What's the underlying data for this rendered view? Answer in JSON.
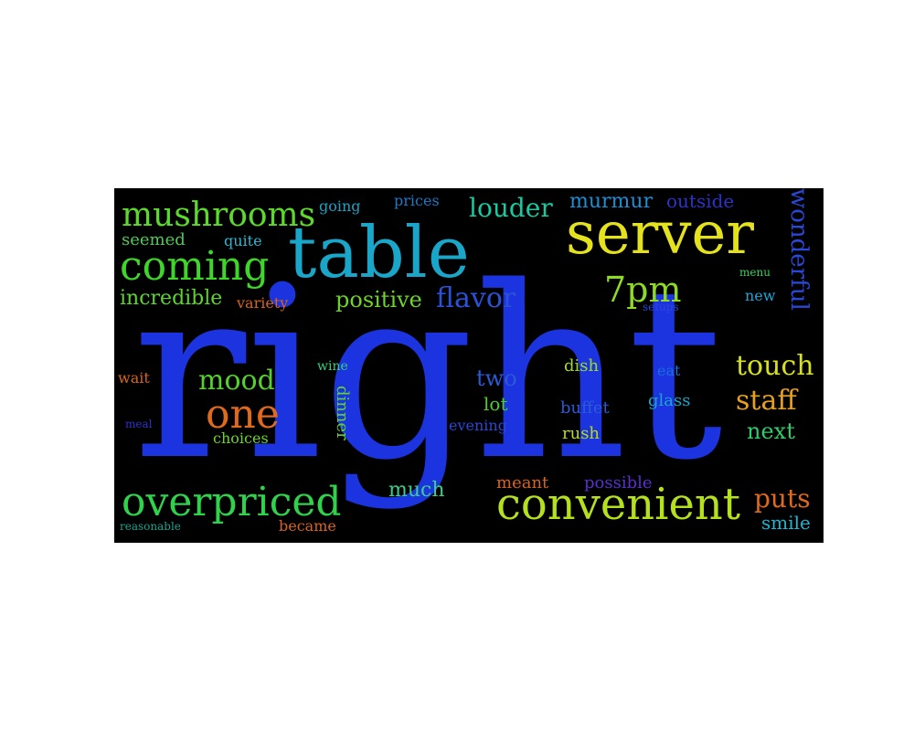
{
  "words": [
    {
      "text": "right",
      "color": "#1b34e0"
    },
    {
      "text": "table",
      "color": "#1aa6c8"
    },
    {
      "text": "server",
      "color": "#e3e21c"
    },
    {
      "text": "convenient",
      "color": "#b5e01c"
    },
    {
      "text": "overpriced",
      "color": "#2fd24a"
    },
    {
      "text": "coming",
      "color": "#3ed629"
    },
    {
      "text": "mushrooms",
      "color": "#5cd92a"
    },
    {
      "text": "one",
      "color": "#e06a1c"
    },
    {
      "text": "mood",
      "color": "#55d12c"
    },
    {
      "text": "louder",
      "color": "#19c9a0"
    },
    {
      "text": "murmur",
      "color": "#1b8fd6"
    },
    {
      "text": "outside",
      "color": "#2b33c9"
    },
    {
      "text": "wonderful",
      "color": "#2b47d6"
    },
    {
      "text": "7pm",
      "color": "#8fda25"
    },
    {
      "text": "flavor",
      "color": "#2a52d8"
    },
    {
      "text": "positive",
      "color": "#6dd42a"
    },
    {
      "text": "incredible",
      "color": "#5ed42c"
    },
    {
      "text": "variety",
      "color": "#d9631c"
    },
    {
      "text": "seemed",
      "color": "#52c85a"
    },
    {
      "text": "quite",
      "color": "#2ab9d0"
    },
    {
      "text": "going",
      "color": "#1aa3c4"
    },
    {
      "text": "prices",
      "color": "#1c79c6"
    },
    {
      "text": "touch",
      "color": "#d6e01c"
    },
    {
      "text": "staff",
      "color": "#e6a01c"
    },
    {
      "text": "next",
      "color": "#2ecc6a"
    },
    {
      "text": "puts",
      "color": "#e06a1c"
    },
    {
      "text": "smile",
      "color": "#1ab7d2"
    },
    {
      "text": "two",
      "color": "#2b5ad6"
    },
    {
      "text": "lot",
      "color": "#49cf2d"
    },
    {
      "text": "dish",
      "color": "#9edb28"
    },
    {
      "text": "eat",
      "color": "#1b6ed6"
    },
    {
      "text": "buffet",
      "color": "#2b5ad6"
    },
    {
      "text": "glass",
      "color": "#1aa6c8"
    },
    {
      "text": "rush",
      "color": "#b6dc1c"
    },
    {
      "text": "evening",
      "color": "#2b47d6"
    },
    {
      "text": "much",
      "color": "#3acf88"
    },
    {
      "text": "meant",
      "color": "#d9631c"
    },
    {
      "text": "possible",
      "color": "#5a2fd0"
    },
    {
      "text": "became",
      "color": "#d9631c"
    },
    {
      "text": "reasonable",
      "color": "#1aa28e"
    },
    {
      "text": "choices",
      "color": "#6dd42a"
    },
    {
      "text": "dinner",
      "color": "#5ed42c"
    },
    {
      "text": "wine",
      "color": "#3acf7a"
    },
    {
      "text": "wait",
      "color": "#d9631c"
    },
    {
      "text": "meal",
      "color": "#2b33c9"
    },
    {
      "text": "menu",
      "color": "#3acf5a"
    },
    {
      "text": "new",
      "color": "#1aa6d8"
    },
    {
      "text": "setups",
      "color": "#2b47d6"
    }
  ]
}
